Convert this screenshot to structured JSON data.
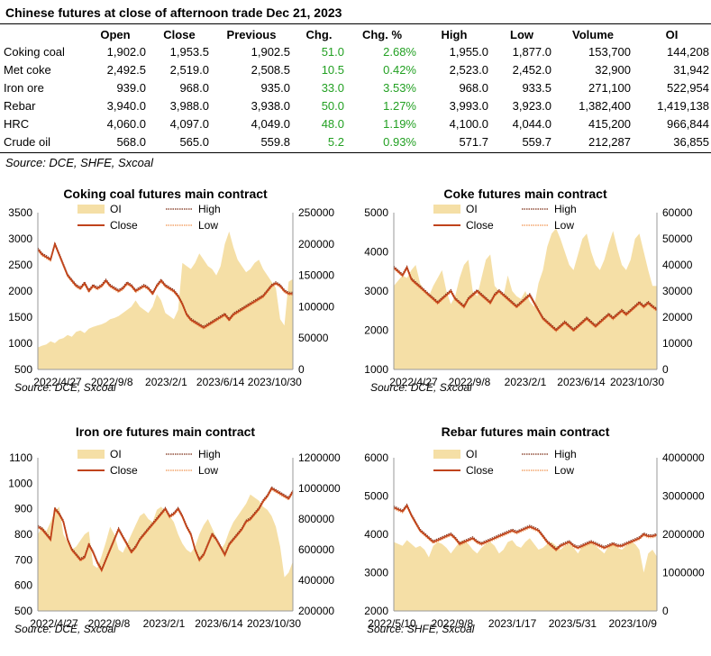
{
  "title": "Chinese futures at close of afternoon trade Dec 21, 2023",
  "table": {
    "headers": [
      "",
      "Open",
      "Close",
      "Previous",
      "Chg.",
      "Chg. %",
      "High",
      "Low",
      "Volume",
      "OI"
    ],
    "rows": [
      [
        "Coking coal",
        "1,902.0",
        "1,953.5",
        "1,902.5",
        "51.0",
        "2.68%",
        "1,955.0",
        "1,877.0",
        "153,700",
        "144,208"
      ],
      [
        "Met coke",
        "2,492.5",
        "2,519.0",
        "2,508.5",
        "10.5",
        "0.42%",
        "2,523.0",
        "2,452.0",
        "32,900",
        "31,942"
      ],
      [
        "Iron ore",
        "939.0",
        "968.0",
        "935.0",
        "33.0",
        "3.53%",
        "968.0",
        "933.5",
        "271,100",
        "522,954"
      ],
      [
        "Rebar",
        "3,940.0",
        "3,988.0",
        "3,938.0",
        "50.0",
        "1.27%",
        "3,993.0",
        "3,923.0",
        "1,382,400",
        "1,419,138"
      ],
      [
        "HRC",
        "4,060.0",
        "4,097.0",
        "4,049.0",
        "48.0",
        "1.19%",
        "4,100.0",
        "4,044.0",
        "415,200",
        "966,844"
      ],
      [
        "Crude oil",
        "568.0",
        "565.0",
        "559.8",
        "5.2",
        "0.93%",
        "571.7",
        "559.7",
        "212,287",
        "36,855"
      ]
    ],
    "source": "Source: DCE, SHFE, Sxcoal"
  },
  "colors": {
    "oi_fill": "#f5dfa6",
    "close_line": "#c0431b",
    "high_line": "#7a2a12",
    "low_line": "#f0924e",
    "change_text": "#22a022"
  },
  "chart_data": [
    {
      "type": "area",
      "title": "Coking coal futures main contract",
      "source": "Source:  DCE, Sxcoal",
      "x_ticks": [
        "2022/4/27",
        "2022/9/8",
        "2023/2/1",
        "2023/6/14",
        "2023/10/30"
      ],
      "ylim_left": [
        500,
        3500
      ],
      "yticks_left": [
        500,
        1000,
        1500,
        2000,
        2500,
        3000,
        3500
      ],
      "ylim_right": [
        0,
        250000
      ],
      "yticks_right": [
        0,
        50000,
        100000,
        150000,
        200000,
        250000
      ],
      "legend": [
        "OI",
        "High",
        "Close",
        "Low"
      ],
      "series": [
        {
          "name": "OI",
          "axis": "right",
          "values": [
            35000,
            38000,
            40000,
            45000,
            42000,
            48000,
            50000,
            55000,
            52000,
            60000,
            62000,
            58000,
            65000,
            68000,
            70000,
            72000,
            75000,
            80000,
            82000,
            85000,
            90000,
            95000,
            100000,
            110000,
            100000,
            95000,
            90000,
            100000,
            120000,
            110000,
            90000,
            85000,
            80000,
            95000,
            170000,
            165000,
            160000,
            170000,
            185000,
            175000,
            165000,
            160000,
            150000,
            165000,
            200000,
            220000,
            195000,
            175000,
            165000,
            155000,
            160000,
            170000,
            175000,
            160000,
            150000,
            140000,
            130000,
            80000,
            70000,
            140000,
            144208
          ]
        },
        {
          "name": "Close",
          "axis": "left",
          "values": [
            2800,
            2700,
            2650,
            2600,
            2900,
            2700,
            2500,
            2300,
            2200,
            2100,
            2050,
            2150,
            2000,
            2100,
            2050,
            2100,
            2200,
            2100,
            2050,
            2000,
            2050,
            2150,
            2100,
            2000,
            2050,
            2100,
            2050,
            1950,
            2100,
            2200,
            2100,
            2050,
            2000,
            1900,
            1750,
            1550,
            1450,
            1400,
            1350,
            1300,
            1350,
            1400,
            1450,
            1500,
            1550,
            1450,
            1550,
            1600,
            1650,
            1700,
            1750,
            1800,
            1850,
            1900,
            2000,
            2100,
            2150,
            2100,
            2000,
            1950,
            1950
          ]
        }
      ]
    },
    {
      "type": "area",
      "title": "Coke futures main contract",
      "source": "Source:  DCE, Sxcoal",
      "x_ticks": [
        "2022/4/27",
        "2022/9/8",
        "2023/2/1",
        "2023/6/14",
        "2023/10/30"
      ],
      "ylim_left": [
        1000,
        5000
      ],
      "yticks_left": [
        1000,
        2000,
        3000,
        4000,
        5000
      ],
      "ylim_right": [
        0,
        60000
      ],
      "yticks_right": [
        0,
        10000,
        20000,
        30000,
        40000,
        50000,
        60000
      ],
      "legend": [
        "OI",
        "High",
        "Close",
        "Low"
      ],
      "series": [
        {
          "name": "OI",
          "axis": "right",
          "values": [
            32000,
            34000,
            36000,
            35000,
            38000,
            40000,
            33000,
            30000,
            28000,
            32000,
            35000,
            38000,
            30000,
            25000,
            28000,
            35000,
            40000,
            42000,
            30000,
            28000,
            35000,
            42000,
            44000,
            32000,
            30000,
            28000,
            36000,
            30000,
            28000,
            27000,
            30000,
            26000,
            24000,
            33000,
            38000,
            47000,
            52000,
            54000,
            50000,
            45000,
            40000,
            38000,
            44000,
            50000,
            52000,
            45000,
            40000,
            38000,
            42000,
            48000,
            53000,
            46000,
            40000,
            38000,
            42000,
            50000,
            52000,
            45000,
            38000,
            32000,
            31942
          ]
        },
        {
          "name": "Close",
          "axis": "left",
          "values": [
            3600,
            3500,
            3400,
            3600,
            3300,
            3200,
            3100,
            3000,
            2900,
            2800,
            2700,
            2800,
            2900,
            3000,
            2800,
            2700,
            2600,
            2800,
            2900,
            3000,
            2900,
            2800,
            2700,
            2900,
            3000,
            2900,
            2800,
            2700,
            2600,
            2700,
            2800,
            2900,
            2700,
            2500,
            2300,
            2200,
            2100,
            2000,
            2100,
            2200,
            2100,
            2000,
            2100,
            2200,
            2300,
            2200,
            2100,
            2200,
            2300,
            2400,
            2300,
            2400,
            2500,
            2400,
            2500,
            2600,
            2700,
            2600,
            2700,
            2600,
            2519
          ]
        }
      ]
    },
    {
      "type": "area",
      "title": "Iron ore futures main contract",
      "source": "Source:  DCE, Sxcoal",
      "x_ticks": [
        "2022/4/27",
        "2022/9/8",
        "2023/2/1",
        "2023/6/14",
        "2023/10/30"
      ],
      "ylim_left": [
        500,
        1100
      ],
      "yticks_left": [
        500,
        600,
        700,
        800,
        900,
        1000,
        1100
      ],
      "ylim_right": [
        200000,
        1200000
      ],
      "yticks_right": [
        200000,
        400000,
        600000,
        800000,
        1000000,
        1200000
      ],
      "legend": [
        "OI",
        "High",
        "Close",
        "Low"
      ],
      "series": [
        {
          "name": "OI",
          "axis": "right",
          "values": [
            700000,
            750000,
            720000,
            780000,
            850000,
            880000,
            700000,
            650000,
            600000,
            620000,
            660000,
            700000,
            720000,
            500000,
            480000,
            560000,
            650000,
            750000,
            700000,
            600000,
            580000,
            640000,
            700000,
            760000,
            820000,
            840000,
            800000,
            780000,
            860000,
            880000,
            850000,
            820000,
            780000,
            700000,
            640000,
            600000,
            580000,
            620000,
            700000,
            760000,
            800000,
            740000,
            680000,
            600000,
            640000,
            720000,
            780000,
            820000,
            860000,
            900000,
            960000,
            940000,
            920000,
            880000,
            860000,
            820000,
            750000,
            620000,
            420000,
            450000,
            522954
          ]
        },
        {
          "name": "Close",
          "axis": "left",
          "values": [
            830,
            820,
            800,
            780,
            900,
            880,
            850,
            780,
            740,
            720,
            700,
            710,
            760,
            730,
            690,
            660,
            700,
            740,
            780,
            820,
            790,
            760,
            730,
            750,
            780,
            800,
            820,
            840,
            860,
            880,
            900,
            870,
            880,
            900,
            870,
            830,
            800,
            740,
            700,
            720,
            760,
            800,
            780,
            750,
            720,
            760,
            780,
            800,
            820,
            850,
            860,
            880,
            900,
            930,
            950,
            980,
            970,
            960,
            950,
            940,
            968
          ]
        }
      ]
    },
    {
      "type": "area",
      "title": "Rebar futures main contract",
      "source": "Source:  SHFE, Sxcoal",
      "x_ticks": [
        "2022/5/10",
        "2022/9/8",
        "2023/1/17",
        "2023/5/31",
        "2023/10/9"
      ],
      "ylim_left": [
        2000,
        6000
      ],
      "yticks_left": [
        2000,
        3000,
        4000,
        5000,
        6000
      ],
      "ylim_right": [
        0,
        4000000
      ],
      "yticks_right": [
        0,
        1000000,
        2000000,
        3000000,
        4000000
      ],
      "legend": [
        "OI",
        "High",
        "Close",
        "Low"
      ],
      "series": [
        {
          "name": "OI",
          "axis": "right",
          "values": [
            1800000,
            1750000,
            1700000,
            1850000,
            1750000,
            1650000,
            1700000,
            1600000,
            1400000,
            1700000,
            1800000,
            1750000,
            1650000,
            1500000,
            1650000,
            1800000,
            1850000,
            1750000,
            1600000,
            1500000,
            1650000,
            1750000,
            1800000,
            1700000,
            1500000,
            1600000,
            1800000,
            1850000,
            1700000,
            1650000,
            1800000,
            1900000,
            1750000,
            1600000,
            1650000,
            1750000,
            1800000,
            1700000,
            1600000,
            1700000,
            1750000,
            1650000,
            1500000,
            1700000,
            1750000,
            1800000,
            1700000,
            1600000,
            1500000,
            1700000,
            1750000,
            1650000,
            1600000,
            1700000,
            1800000,
            1750000,
            1600000,
            1000000,
            1500000,
            1600000,
            1419138
          ]
        },
        {
          "name": "Close",
          "axis": "left",
          "values": [
            4700,
            4650,
            4600,
            4750,
            4500,
            4300,
            4100,
            4000,
            3900,
            3800,
            3850,
            3900,
            3950,
            4000,
            3900,
            3750,
            3800,
            3850,
            3900,
            3800,
            3750,
            3800,
            3850,
            3900,
            3950,
            4000,
            4050,
            4100,
            4050,
            4100,
            4150,
            4200,
            4150,
            4100,
            3950,
            3800,
            3700,
            3600,
            3700,
            3750,
            3800,
            3700,
            3650,
            3700,
            3750,
            3800,
            3750,
            3700,
            3650,
            3700,
            3750,
            3700,
            3700,
            3750,
            3800,
            3850,
            3900,
            4000,
            3950,
            3950,
            3988
          ]
        }
      ]
    }
  ]
}
